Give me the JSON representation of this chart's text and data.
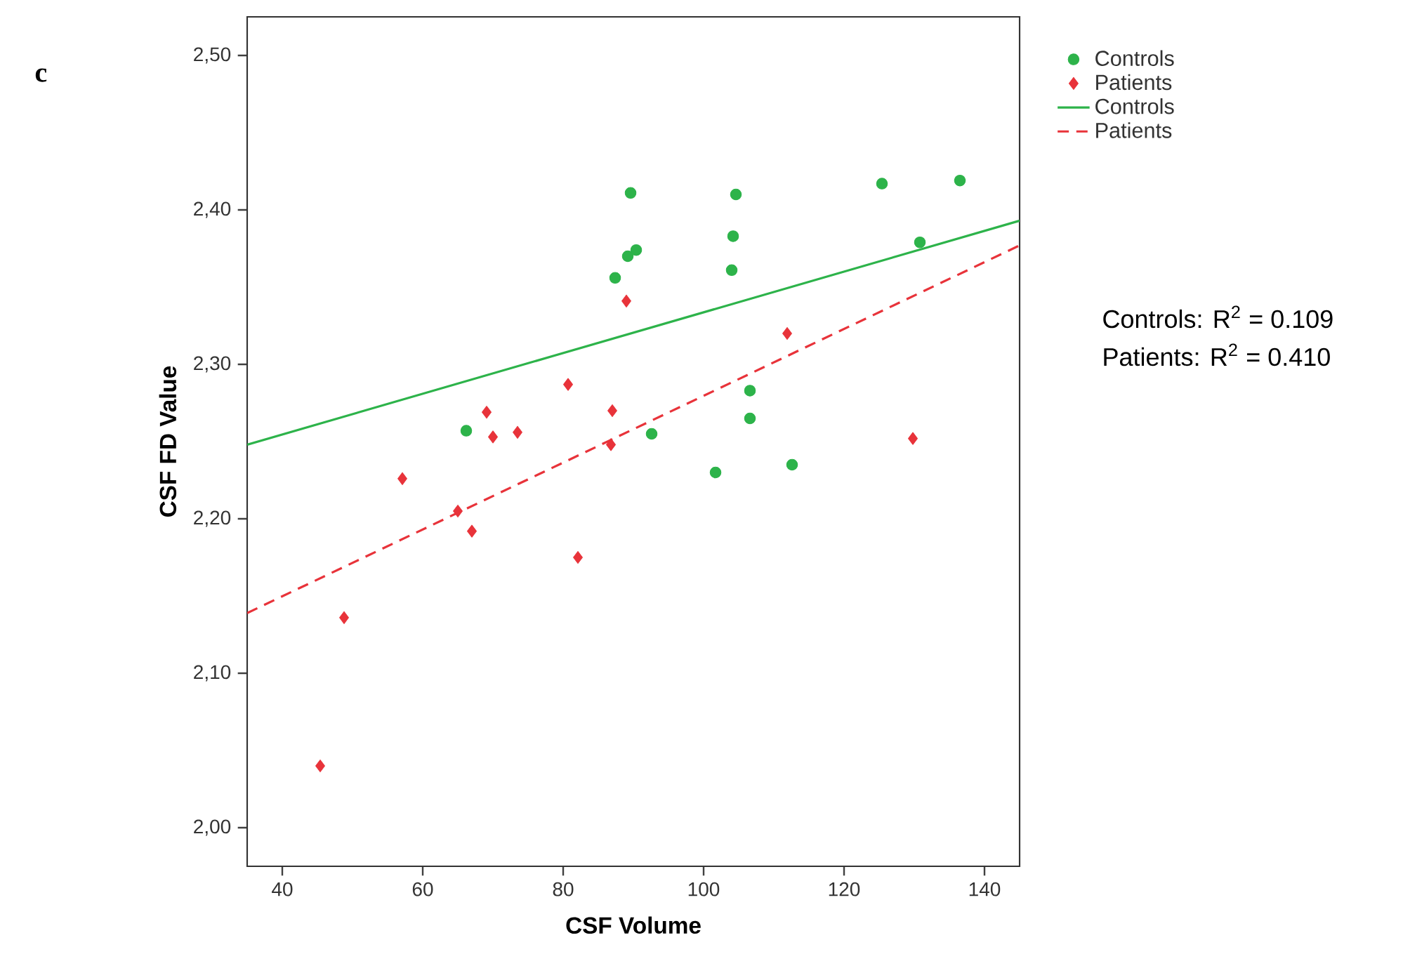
{
  "chart_data": {
    "type": "scatter",
    "xlabel": "CSF Volume",
    "ylabel": "CSF FD Value",
    "xlim": [
      35,
      145
    ],
    "ylim": [
      1.975,
      2.525
    ],
    "xticks": [
      40,
      60,
      80,
      100,
      120,
      140
    ],
    "yticks": [
      {
        "value": 2.0,
        "label": "2,00"
      },
      {
        "value": 2.1,
        "label": "2,10"
      },
      {
        "value": 2.2,
        "label": "2,20"
      },
      {
        "value": 2.3,
        "label": "2,30"
      },
      {
        "value": 2.4,
        "label": "2,40"
      },
      {
        "value": 2.5,
        "label": "2,50"
      }
    ],
    "grid": false,
    "legend": "top right",
    "annotations": [
      "c",
      "Controls: R$^{2}$ = 0.109",
      "Patients: R$^{2}$ = 0.410"
    ],
    "series": [
      {
        "name": "Controls",
        "marker": "circle",
        "color": "#2db34a",
        "x": [
          89.6,
          104.6,
          125.4,
          136.5,
          104.2,
          89.2,
          90.4,
          87.4,
          104.0,
          130.8,
          66.2,
          92.6,
          106.6,
          106.6,
          101.7,
          112.6
        ],
        "values": [
          2.411,
          2.41,
          2.417,
          2.419,
          2.383,
          2.37,
          2.374,
          2.356,
          2.361,
          2.379,
          2.257,
          2.255,
          2.283,
          2.265,
          2.23,
          2.235
        ]
      },
      {
        "name": "Patients",
        "marker": "diamond",
        "color": "#e8333a",
        "x": [
          45.4,
          48.8,
          57.1,
          65.0,
          67.0,
          69.1,
          70.0,
          73.5,
          80.7,
          82.1,
          87.0,
          86.8,
          89.0,
          111.9,
          129.8
        ],
        "values": [
          2.04,
          2.136,
          2.226,
          2.205,
          2.192,
          2.269,
          2.253,
          2.256,
          2.287,
          2.175,
          2.27,
          2.248,
          2.341,
          2.32,
          2.252
        ]
      },
      {
        "name": "Controls",
        "type": "line",
        "marker": "none",
        "line_style": "solid",
        "color": "#2db34a",
        "x": [
          35,
          145
        ],
        "values": [
          2.248,
          2.393
        ]
      },
      {
        "name": "Patients",
        "type": "line",
        "marker": "none",
        "line_style": "dashed",
        "color": "#e8333a",
        "x": [
          35,
          145
        ],
        "values": [
          2.139,
          2.377
        ]
      }
    ]
  }
}
